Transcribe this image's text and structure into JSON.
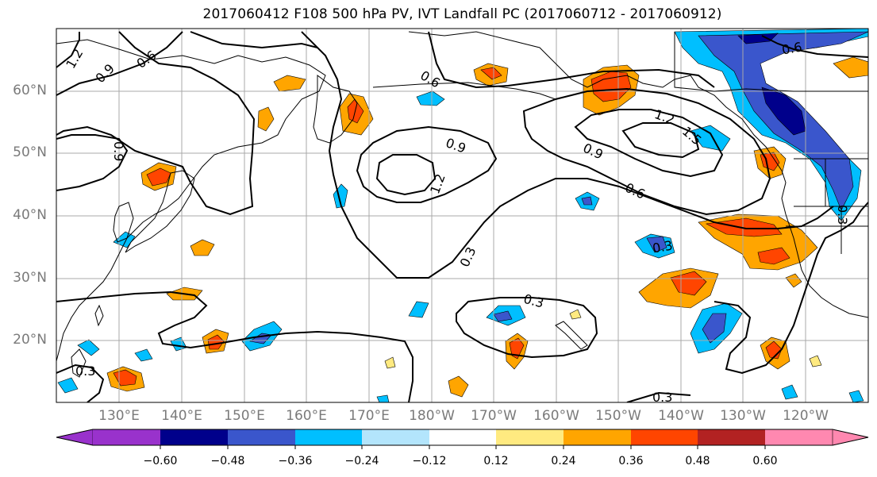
{
  "title": "2017060412 F108 500 hPa PV, IVT Landfall PC (2017060712 - 2017060912)",
  "map": {
    "region": "North Pacific",
    "latitude_labels": [
      "60°N",
      "50°N",
      "40°N",
      "30°N",
      "20°N"
    ],
    "longitude_labels": [
      "130°E",
      "140°E",
      "150°E",
      "160°E",
      "170°E",
      "180°W",
      "170°W",
      "160°W",
      "150°W",
      "140°W",
      "130°W",
      "120°W"
    ],
    "grid": true,
    "contour_field": "500 hPa PV",
    "contour_labels": [
      "1.2",
      "0.9",
      "0.6",
      "0.9",
      "0.6",
      "0.9",
      "1.2",
      "0.3",
      "0.3",
      "0.3",
      "1.2",
      "1.5",
      "0.9",
      "0.6",
      "0.3",
      "0.6",
      "0.3",
      "0.3"
    ],
    "shaded_field": "IVT Landfall PC"
  },
  "colorbar": {
    "ticks": [
      "−0.60",
      "−0.48",
      "−0.36",
      "−0.24",
      "−0.12",
      "0.12",
      "0.24",
      "0.36",
      "0.48",
      "0.60"
    ],
    "colors": [
      "#9932cc",
      "#00008b",
      "#3a56cc",
      "#00bfff",
      "#b3e5fc",
      "#ffffff",
      "#ffea80",
      "#ffa500",
      "#ff4500",
      "#b22222",
      "#ff88b0"
    ]
  }
}
